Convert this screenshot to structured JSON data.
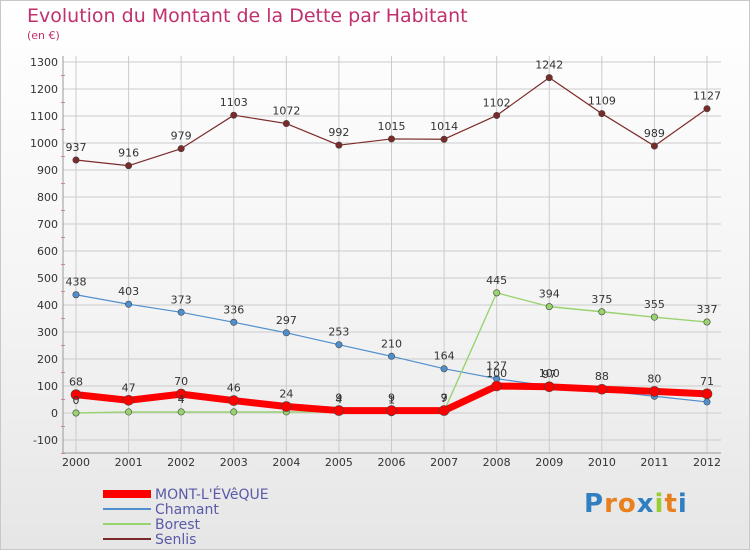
{
  "header": {
    "title": "Evolution du Montant de la Dette par Habitant",
    "unit": "(en €)"
  },
  "logo": {
    "text": "Proxiti",
    "letter_colors": [
      "#2f7fc1",
      "#e8801f",
      "#e8801f",
      "#2f7fc1",
      "#9acd32",
      "#e8801f",
      "#2f7fc1"
    ]
  },
  "colors": {
    "title": "#c0306e",
    "grid": "#cccccc",
    "axis": "#999999"
  },
  "chart_data": {
    "type": "line",
    "title": "Evolution du Montant de la Dette par Habitant",
    "ylabel": "(en €)",
    "xlabel": "",
    "x": [
      "2000",
      "2001",
      "2002",
      "2003",
      "2004",
      "2005",
      "2006",
      "2007",
      "2008",
      "2009",
      "2010",
      "2011",
      "2012"
    ],
    "ylim": [
      -100,
      1300
    ],
    "yticks": [
      -100,
      0,
      100,
      200,
      300,
      400,
      500,
      600,
      700,
      800,
      900,
      1000,
      1100,
      1200,
      1300
    ],
    "grid": true,
    "legend_position": "bottom-left",
    "series": [
      {
        "name": "Senlis",
        "color": "#7b2a2a",
        "width": 1.2,
        "values": [
          937,
          916,
          979,
          1103,
          1072,
          992,
          1015,
          1014,
          1102,
          1242,
          1109,
          989,
          1127
        ],
        "labels": [
          "937",
          "916",
          "979",
          "1103",
          "1072",
          "992",
          "1015",
          "1014",
          "1102",
          "1242",
          "1109",
          "989",
          "1127"
        ]
      },
      {
        "name": "Chamant",
        "color": "#4f8fce",
        "width": 1.2,
        "values": [
          438,
          403,
          373,
          336,
          297,
          253,
          210,
          164,
          127,
          100,
          83,
          62,
          41
        ],
        "labels": [
          "438",
          "403",
          "373",
          "336",
          "297",
          "253",
          "210",
          "164",
          "127",
          "100",
          "",
          "",
          ""
        ]
      },
      {
        "name": "Borest",
        "color": "#99d370",
        "width": 1.4,
        "values": [
          0,
          4,
          4,
          4,
          4,
          4,
          1,
          7,
          445,
          394,
          375,
          355,
          337
        ],
        "labels": [
          "0",
          "",
          "4",
          "",
          "",
          "4",
          "1",
          "7",
          "445",
          "394",
          "375",
          "355",
          "337"
        ]
      },
      {
        "name": "MONT-L'ÉVêQUE",
        "color": "#ff0000",
        "width": 7,
        "values": [
          68,
          47,
          70,
          46,
          24,
          9,
          9,
          9,
          100,
          97,
          88,
          80,
          71
        ],
        "labels": [
          "68",
          "47",
          "70",
          "46",
          "24",
          "9",
          "9",
          "9",
          "100",
          "97",
          "88",
          "80",
          "71"
        ]
      }
    ],
    "legend_order": [
      "MONT-L'ÉVêQUE",
      "Chamant",
      "Borest",
      "Senlis"
    ]
  }
}
